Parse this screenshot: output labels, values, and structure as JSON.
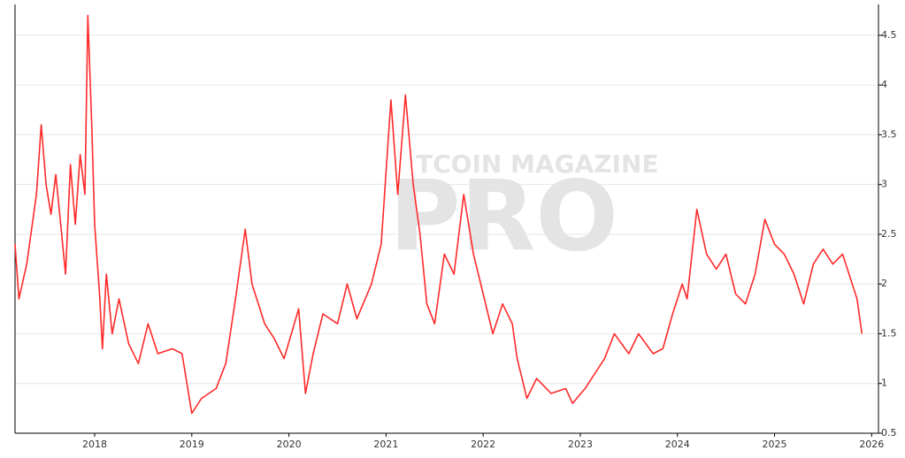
{
  "chart_data": {
    "type": "line",
    "watermark": [
      "TCOIN MAGAZINE",
      "PRO"
    ],
    "x": [
      2017.18,
      2017.22,
      2017.3,
      2017.4,
      2017.45,
      2017.5,
      2017.55,
      2017.6,
      2017.7,
      2017.75,
      2017.8,
      2017.85,
      2017.9,
      2017.93,
      2017.97,
      2018.0,
      2018.05,
      2018.08,
      2018.12,
      2018.18,
      2018.25,
      2018.35,
      2018.45,
      2018.55,
      2018.65,
      2018.8,
      2018.9,
      2018.95,
      2019.0,
      2019.1,
      2019.25,
      2019.35,
      2019.45,
      2019.55,
      2019.62,
      2019.75,
      2019.85,
      2019.95,
      2020.1,
      2020.17,
      2020.25,
      2020.35,
      2020.5,
      2020.6,
      2020.7,
      2020.85,
      2020.95,
      2021.05,
      2021.12,
      2021.2,
      2021.28,
      2021.35,
      2021.42,
      2021.5,
      2021.6,
      2021.7,
      2021.8,
      2021.9,
      2022.0,
      2022.1,
      2022.2,
      2022.3,
      2022.35,
      2022.45,
      2022.55,
      2022.7,
      2022.85,
      2022.92,
      2023.05,
      2023.15,
      2023.25,
      2023.35,
      2023.5,
      2023.6,
      2023.75,
      2023.85,
      2023.95,
      2024.05,
      2024.1,
      2024.2,
      2024.3,
      2024.4,
      2024.5,
      2024.6,
      2024.7,
      2024.8,
      2024.9,
      2025.0,
      2025.1,
      2025.2,
      2025.3,
      2025.4,
      2025.5,
      2025.6,
      2025.7,
      2025.8,
      2025.85,
      2025.9
    ],
    "series": [
      {
        "color": "#ff2a2a",
        "values": [
          2.4,
          1.85,
          2.2,
          2.9,
          3.6,
          3.0,
          2.7,
          3.1,
          2.1,
          3.2,
          2.6,
          3.3,
          2.9,
          4.7,
          3.6,
          2.6,
          1.9,
          1.35,
          2.1,
          1.5,
          1.85,
          1.4,
          1.2,
          1.6,
          1.3,
          1.35,
          1.3,
          1.0,
          0.7,
          0.85,
          0.95,
          1.2,
          1.85,
          2.55,
          2.0,
          1.6,
          1.45,
          1.25,
          1.75,
          0.9,
          1.3,
          1.7,
          1.6,
          2.0,
          1.65,
          2.0,
          2.4,
          3.85,
          2.9,
          3.9,
          3.0,
          2.5,
          1.8,
          1.6,
          2.3,
          2.1,
          2.9,
          2.3,
          1.9,
          1.5,
          1.8,
          1.6,
          1.25,
          0.85,
          1.05,
          0.9,
          0.95,
          0.8,
          0.95,
          1.1,
          1.25,
          1.5,
          1.3,
          1.5,
          1.3,
          1.35,
          1.7,
          2.0,
          1.85,
          2.75,
          2.3,
          2.15,
          2.3,
          1.9,
          1.8,
          2.1,
          2.65,
          2.4,
          2.3,
          2.1,
          1.8,
          2.2,
          2.35,
          2.2,
          2.3,
          2.0,
          1.85,
          1.5
        ]
      }
    ],
    "xlim": [
      2017.18,
      2026.07
    ],
    "xticks": [
      2018,
      2019,
      2020,
      2021,
      2022,
      2023,
      2024,
      2025,
      2026
    ],
    "ylim": [
      0.5,
      4.81
    ],
    "yticks": [
      0.5,
      1,
      1.5,
      2,
      2.5,
      3,
      3.5,
      4,
      4.5
    ],
    "grid": true,
    "y_axis_side": "right"
  }
}
